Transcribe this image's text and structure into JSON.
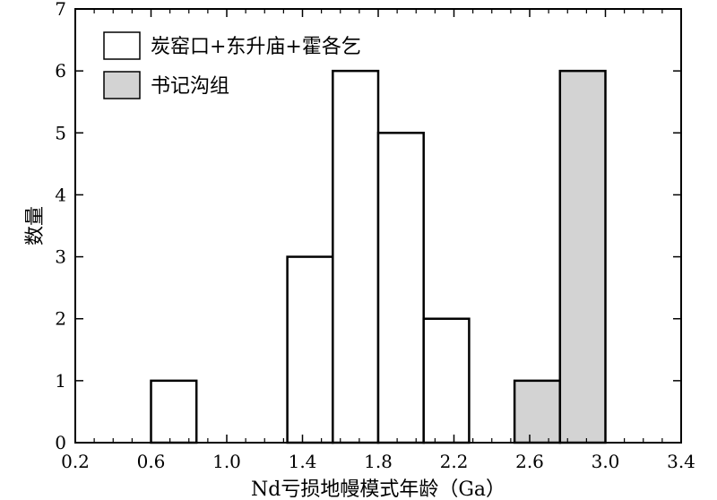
{
  "chart_data": {
    "type": "bar",
    "title": "",
    "xlabel": "Nd亏损地幔模式年龄（Ga）",
    "ylabel": "数量",
    "xlim": [
      0.2,
      3.4
    ],
    "ylim": [
      0,
      7
    ],
    "x_ticks": [
      "0.2",
      "0.6",
      "1.0",
      "1.4",
      "1.8",
      "2.2",
      "2.6",
      "3.0",
      "3.4"
    ],
    "y_ticks": [
      "0",
      "1",
      "2",
      "3",
      "4",
      "5",
      "6",
      "7"
    ],
    "legend_position": "top-left",
    "series": [
      {
        "name": "炭窑口+东升庙+霍各乞",
        "color": "#ffffff",
        "bins": [
          {
            "x0": 0.6,
            "x1": 0.84,
            "count": 1
          },
          {
            "x0": 1.32,
            "x1": 1.56,
            "count": 3
          },
          {
            "x0": 1.56,
            "x1": 1.8,
            "count": 6
          },
          {
            "x0": 1.8,
            "x1": 2.04,
            "count": 5
          },
          {
            "x0": 2.04,
            "x1": 2.28,
            "count": 2
          }
        ]
      },
      {
        "name": "书记沟组",
        "color": "#d3d3d3",
        "bins": [
          {
            "x0": 2.52,
            "x1": 2.76,
            "count": 1
          },
          {
            "x0": 2.76,
            "x1": 3.0,
            "count": 6
          }
        ]
      }
    ]
  }
}
